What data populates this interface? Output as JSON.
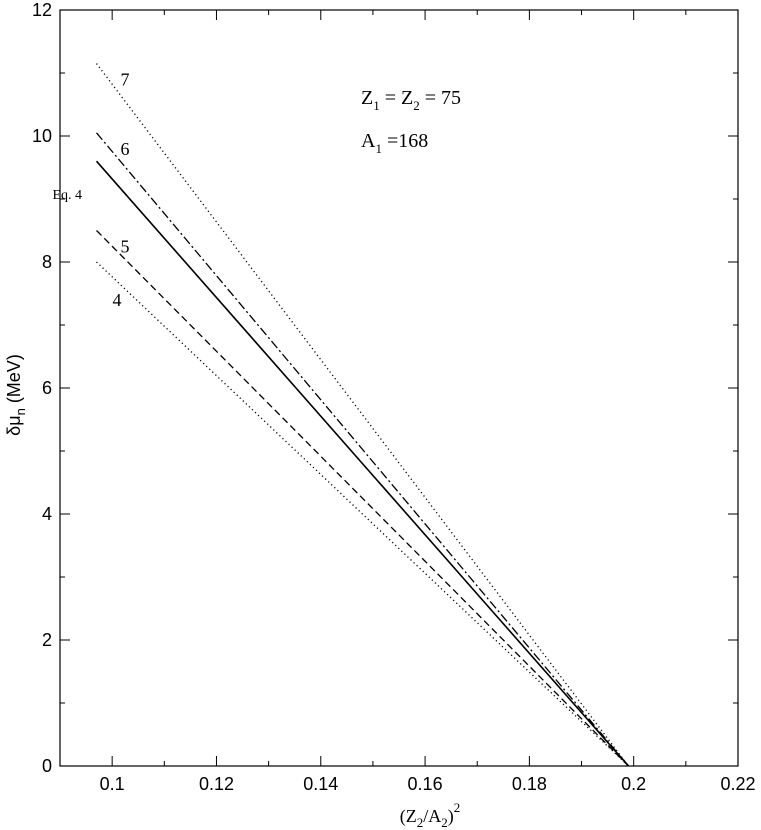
{
  "chart_data": {
    "type": "line",
    "xlim": [
      0.09,
      0.22
    ],
    "ylim": [
      0,
      12
    ],
    "xticks": [
      0.1,
      0.12,
      0.14,
      0.16,
      0.18,
      0.2,
      0.22
    ],
    "xtick_labels": [
      "0.1",
      "0.12",
      "0.14",
      "0.16",
      "0.18",
      "0.2",
      "0.22"
    ],
    "yticks": [
      0,
      2,
      4,
      6,
      8,
      10,
      12
    ],
    "ytick_labels": [
      "0",
      "2",
      "4",
      "6",
      "8",
      "10",
      "12"
    ],
    "xlabel": {
      "open": "(Z",
      "sub1": "2",
      "mid": "/A",
      "sub2": "2",
      "close": ")",
      "sup": "2"
    },
    "ylabel": {
      "main": "δμ",
      "sub": "n",
      "unit": " (MeV)"
    },
    "annotations": {
      "line1": {
        "z1": "Z",
        "z1sub": "1",
        "eq": " = Z",
        "z2sub": "2",
        "val": " = 75"
      },
      "line2": {
        "a": "A",
        "asub": "1",
        "val": " =168"
      }
    },
    "grid": false,
    "legend": "none",
    "series": [
      {
        "id": "s7",
        "label": "7",
        "style": "dotted",
        "x": [
          0.097,
          0.199
        ],
        "y": [
          11.15,
          0
        ]
      },
      {
        "id": "s6",
        "label": "6",
        "style": "dashdot",
        "x": [
          0.097,
          0.199
        ],
        "y": [
          10.05,
          0
        ]
      },
      {
        "id": "eq4",
        "label": "Eq. 4",
        "style": "solid",
        "x": [
          0.097,
          0.199
        ],
        "y": [
          9.6,
          0
        ]
      },
      {
        "id": "s5",
        "label": "5",
        "style": "dashed",
        "x": [
          0.097,
          0.199
        ],
        "y": [
          8.5,
          0
        ]
      },
      {
        "id": "s4",
        "label": "4",
        "style": "dotted",
        "x": [
          0.097,
          0.199
        ],
        "y": [
          8.0,
          0
        ]
      }
    ]
  }
}
